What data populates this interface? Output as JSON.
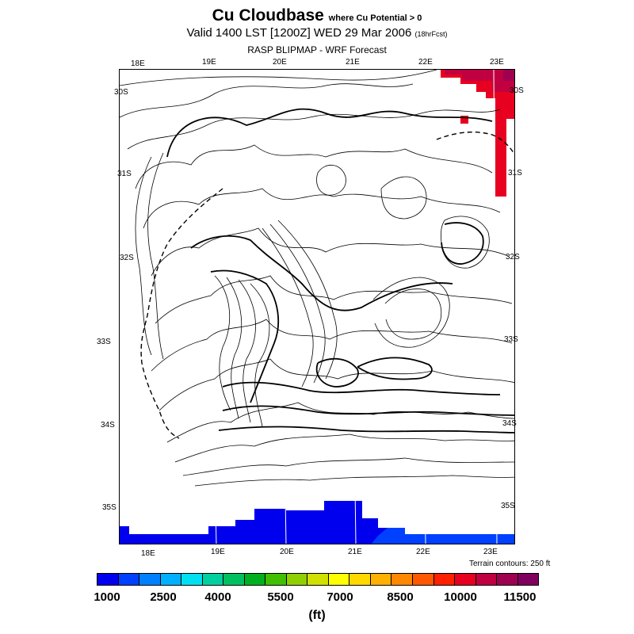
{
  "header": {
    "title": "Cu Cloudbase",
    "title_note": "where Cu Potential > 0",
    "valid": "Valid 1400 LST [1200Z] WED 29 Mar 2006",
    "forecast": "(18hrFcst)",
    "model": "RASP BLIPMAP - WRF Forecast"
  },
  "map": {
    "top_lon_labels": [
      "18E",
      "19E",
      "20E",
      "21E",
      "22E",
      "23E"
    ],
    "bottom_lon_labels": [
      "18E",
      "19E",
      "20E",
      "21E",
      "22E",
      "23E"
    ],
    "left_lat_labels": [
      "30S",
      "31S",
      "32S",
      "33S",
      "34S",
      "35S"
    ],
    "right_lat_labels": [
      "30S",
      "31S",
      "32S",
      "33S",
      "34S",
      "35S"
    ],
    "terrain_contours": "Terrain contours: 250 ft"
  },
  "legend": {
    "colors": [
      "#0000ee",
      "#0040ff",
      "#0080ff",
      "#00b0ff",
      "#00e0f0",
      "#00d0a0",
      "#00c060",
      "#00b020",
      "#40c000",
      "#90d000",
      "#d0e000",
      "#ffff00",
      "#ffd800",
      "#ffb000",
      "#ff8800",
      "#ff5800",
      "#ff2000",
      "#e80020",
      "#c00040",
      "#a00050",
      "#800060"
    ],
    "ticks": [
      "1000",
      "2500",
      "4000",
      "5500",
      "7000",
      "8500",
      "10000",
      "11500"
    ],
    "unit": "(ft)"
  },
  "field_colors": {
    "low": "#0000ee",
    "low2": "#0040ff",
    "high": "#e80020",
    "high2": "#c00040",
    "top": "#a00050"
  }
}
